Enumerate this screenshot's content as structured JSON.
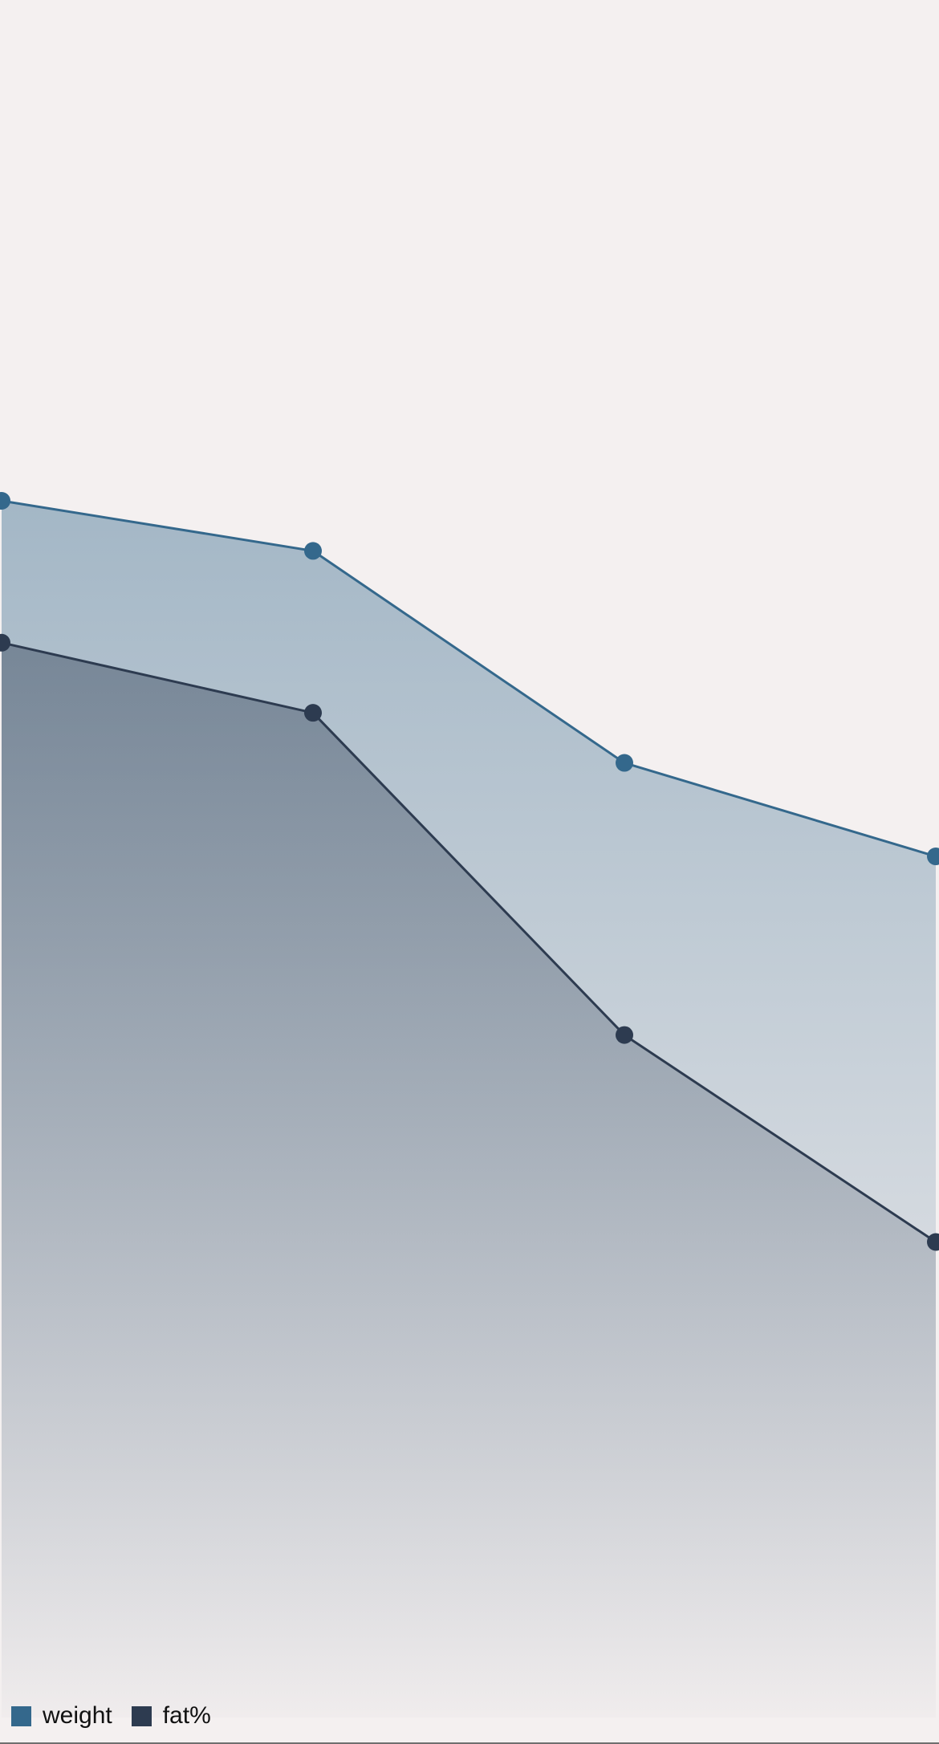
{
  "colors": {
    "background": "#f4f0f0",
    "weight": "#34688c",
    "fat": "#2d3b50"
  },
  "chart_data": {
    "type": "area",
    "title": "",
    "xlabel": "",
    "ylabel": "",
    "grid": false,
    "legend_position": "bottom-left",
    "x": [
      0,
      1,
      2,
      3
    ],
    "ylim": [
      0,
      100
    ],
    "series": [
      {
        "name": "weight",
        "color": "#34688c",
        "values": [
          70,
          67,
          54.3,
          48.7
        ]
      },
      {
        "name": "fat%",
        "color": "#2d3b50",
        "values": [
          61.5,
          57.3,
          38,
          25.6
        ]
      }
    ]
  },
  "legend": {
    "items": [
      {
        "label": "weight",
        "color": "#34688c"
      },
      {
        "label": "fat%",
        "color": "#2d3b50"
      }
    ]
  }
}
